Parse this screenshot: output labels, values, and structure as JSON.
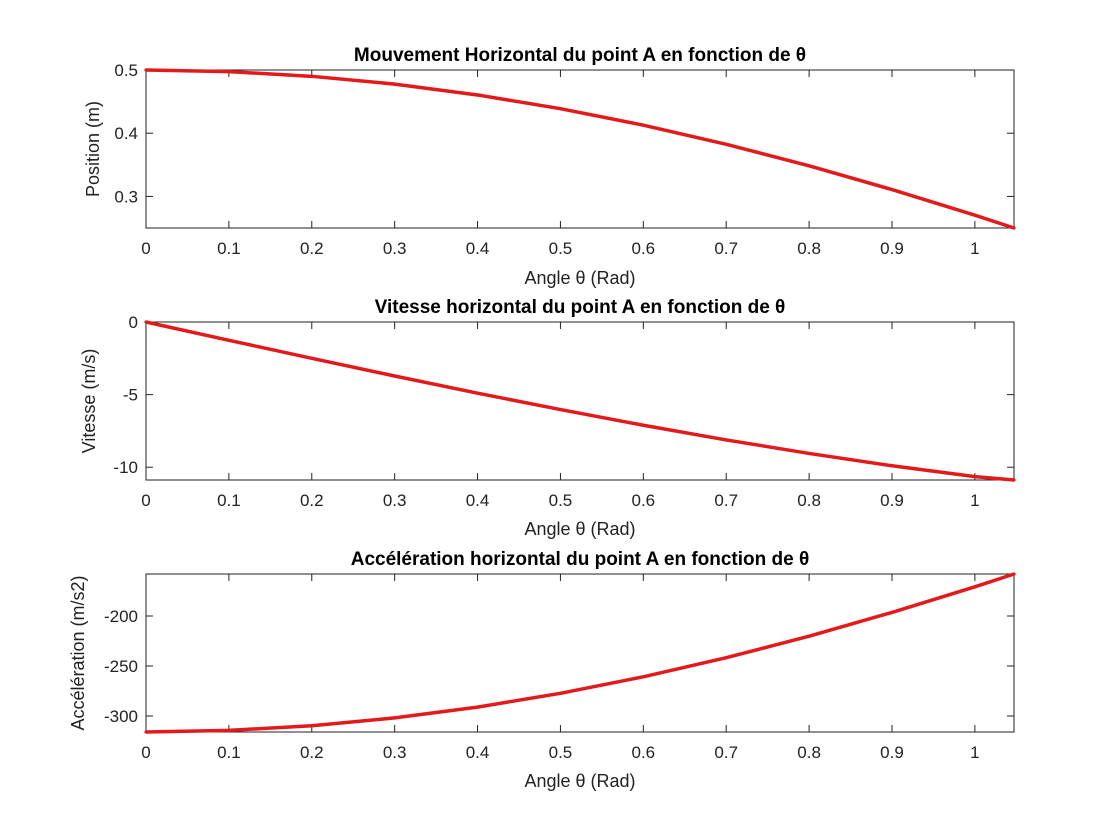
{
  "chart_data": [
    {
      "type": "line",
      "title": "Mouvement Horizontal du point A en fonction de θ",
      "xlabel": "Angle θ (Rad)",
      "ylabel": "Position (m)",
      "xlim": [
        0,
        1.0472
      ],
      "ylim": [
        0.25,
        0.5
      ],
      "xticks": [
        0,
        0.1,
        0.2,
        0.3,
        0.4,
        0.5,
        0.6,
        0.7,
        0.8,
        0.9,
        1
      ],
      "xtick_labels": [
        "0",
        "0.1",
        "0.2",
        "0.3",
        "0.4",
        "0.5",
        "0.6",
        "0.7",
        "0.8",
        "0.9",
        "1"
      ],
      "yticks": [
        0.3,
        0.4,
        0.5
      ],
      "ytick_labels": [
        "0.3",
        "0.4",
        "0.5"
      ],
      "grid": false,
      "color": "#e31a1c",
      "x": [
        0,
        0.1,
        0.2,
        0.3,
        0.4,
        0.5,
        0.6,
        0.7,
        0.8,
        0.9,
        1.0,
        1.0472
      ],
      "y": [
        0.5,
        0.4975,
        0.49,
        0.4777,
        0.4605,
        0.4388,
        0.4127,
        0.3824,
        0.3484,
        0.3108,
        0.2702,
        0.25
      ]
    },
    {
      "type": "line",
      "title": "Vitesse horizontal du point A en fonction de θ",
      "xlabel": "Angle θ (Rad)",
      "ylabel": "Vitesse (m/s)",
      "xlim": [
        0,
        1.0472
      ],
      "ylim": [
        -10.88,
        0
      ],
      "xticks": [
        0,
        0.1,
        0.2,
        0.3,
        0.4,
        0.5,
        0.6,
        0.7,
        0.8,
        0.9,
        1
      ],
      "xtick_labels": [
        "0",
        "0.1",
        "0.2",
        "0.3",
        "0.4",
        "0.5",
        "0.6",
        "0.7",
        "0.8",
        "0.9",
        "1"
      ],
      "yticks": [
        -10,
        -5,
        0
      ],
      "ytick_labels": [
        "-10",
        "-5",
        "0"
      ],
      "grid": false,
      "color": "#e31a1c",
      "x": [
        0,
        0.1,
        0.2,
        0.3,
        0.4,
        0.5,
        0.6,
        0.7,
        0.8,
        0.9,
        1.0,
        1.0472
      ],
      "y": [
        0,
        -1.26,
        -2.5,
        -3.72,
        -4.9,
        -6.03,
        -7.11,
        -8.12,
        -9.05,
        -9.9,
        -10.65,
        -10.88
      ]
    },
    {
      "type": "line",
      "title": "Accélération horizontal du point A en fonction de θ",
      "xlabel": "Angle θ (Rad)",
      "ylabel": "Accélération (m/s2)",
      "xlim": [
        0,
        1.0472
      ],
      "ylim": [
        -316,
        -158
      ],
      "xticks": [
        0,
        0.1,
        0.2,
        0.3,
        0.4,
        0.5,
        0.6,
        0.7,
        0.8,
        0.9,
        1
      ],
      "xtick_labels": [
        "0",
        "0.1",
        "0.2",
        "0.3",
        "0.4",
        "0.5",
        "0.6",
        "0.7",
        "0.8",
        "0.9",
        "1"
      ],
      "yticks": [
        -300,
        -250,
        -200
      ],
      "ytick_labels": [
        "-300",
        "-250",
        "-200"
      ],
      "grid": false,
      "color": "#e31a1c",
      "x": [
        0,
        0.1,
        0.2,
        0.3,
        0.4,
        0.5,
        0.6,
        0.7,
        0.8,
        0.9,
        1.0,
        1.0472
      ],
      "y": [
        -316,
        -314.4,
        -309.7,
        -301.9,
        -291.1,
        -277.3,
        -260.8,
        -241.7,
        -220.2,
        -196.4,
        -170.8,
        -158
      ]
    }
  ]
}
